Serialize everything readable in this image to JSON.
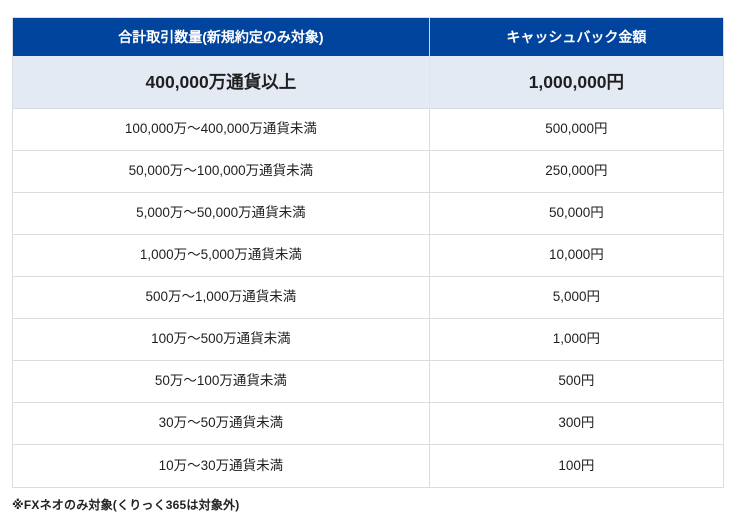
{
  "colors": {
    "header_bg": "#00449d",
    "header_divider": "#ccd9ec",
    "highlight_bg": "#e4eaf3",
    "highlight_divider": "#e0e5ee",
    "border": "#d9dde2",
    "text": "#1f1f1f"
  },
  "table": {
    "headers": {
      "volume": "合計取引数量(新規約定のみ対象)",
      "cashback": "キャッシュバック金額"
    },
    "highlight_row": {
      "volume": "400,000万通貨以上",
      "cashback": "1,000,000円"
    },
    "rows": [
      {
        "volume": "100,000万～400,000万通貨未満",
        "cashback": "500,000円"
      },
      {
        "volume": "50,000万～100,000万通貨未満",
        "cashback": "250,000円"
      },
      {
        "volume": "5,000万～50,000万通貨未満",
        "cashback": "50,000円"
      },
      {
        "volume": "1,000万～5,000万通貨未満",
        "cashback": "10,000円"
      },
      {
        "volume": "500万～1,000万通貨未満",
        "cashback": "5,000円"
      },
      {
        "volume": "100万～500万通貨未満",
        "cashback": "1,000円"
      },
      {
        "volume": "50万～100万通貨未満",
        "cashback": "500円"
      },
      {
        "volume": "30万～50万通貨未満",
        "cashback": "300円"
      },
      {
        "volume": "10万～30万通貨未満",
        "cashback": "100円"
      }
    ]
  },
  "footnote": "※FXネオのみ対象(くりっく365は対象外)"
}
